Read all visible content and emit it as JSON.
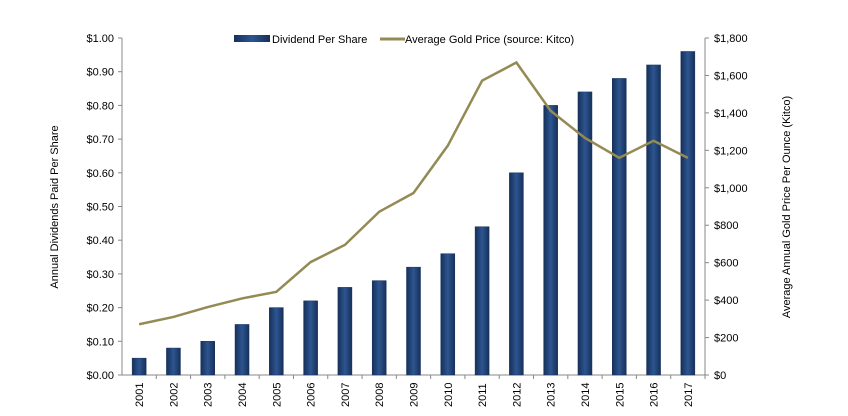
{
  "chart_data": {
    "type": "bar+line",
    "categories": [
      "2001",
      "2002",
      "2003",
      "2004",
      "2005",
      "2006",
      "2007",
      "2008",
      "2009",
      "2010",
      "2011",
      "2012",
      "2013",
      "2014",
      "2015",
      "2016",
      "2017"
    ],
    "series": [
      {
        "name": "Dividend Per Share",
        "type": "bar",
        "axis": "left",
        "color": "#1f3d6e",
        "values": [
          0.05,
          0.08,
          0.1,
          0.15,
          0.2,
          0.22,
          0.26,
          0.28,
          0.32,
          0.36,
          0.44,
          0.6,
          0.8,
          0.84,
          0.88,
          0.92,
          0.96
        ]
      },
      {
        "name": "Average Gold Price (source: Kitco)",
        "type": "line",
        "axis": "right",
        "color": "#948a54",
        "values": [
          271,
          310,
          363,
          409,
          444,
          603,
          695,
          872,
          972,
          1225,
          1572,
          1669,
          1411,
          1266,
          1160,
          1251,
          1160
        ]
      }
    ],
    "ylabel": "Annual Dividends Paid Per Share",
    "y2label": "Average Annual Gold Price Per Ounce (Kitco)",
    "ylim": [
      0,
      1.0
    ],
    "y2lim": [
      0,
      1800
    ],
    "yticks": [
      "$0.00",
      "$0.10",
      "$0.20",
      "$0.30",
      "$0.40",
      "$0.50",
      "$0.60",
      "$0.70",
      "$0.80",
      "$0.90",
      "$1.00"
    ],
    "y2ticks": [
      "$0",
      "$200",
      "$400",
      "$600",
      "$800",
      "$1,000",
      "$1,200",
      "$1,400",
      "$1,600",
      "$1,800"
    ],
    "grid": false,
    "legend": "top"
  }
}
